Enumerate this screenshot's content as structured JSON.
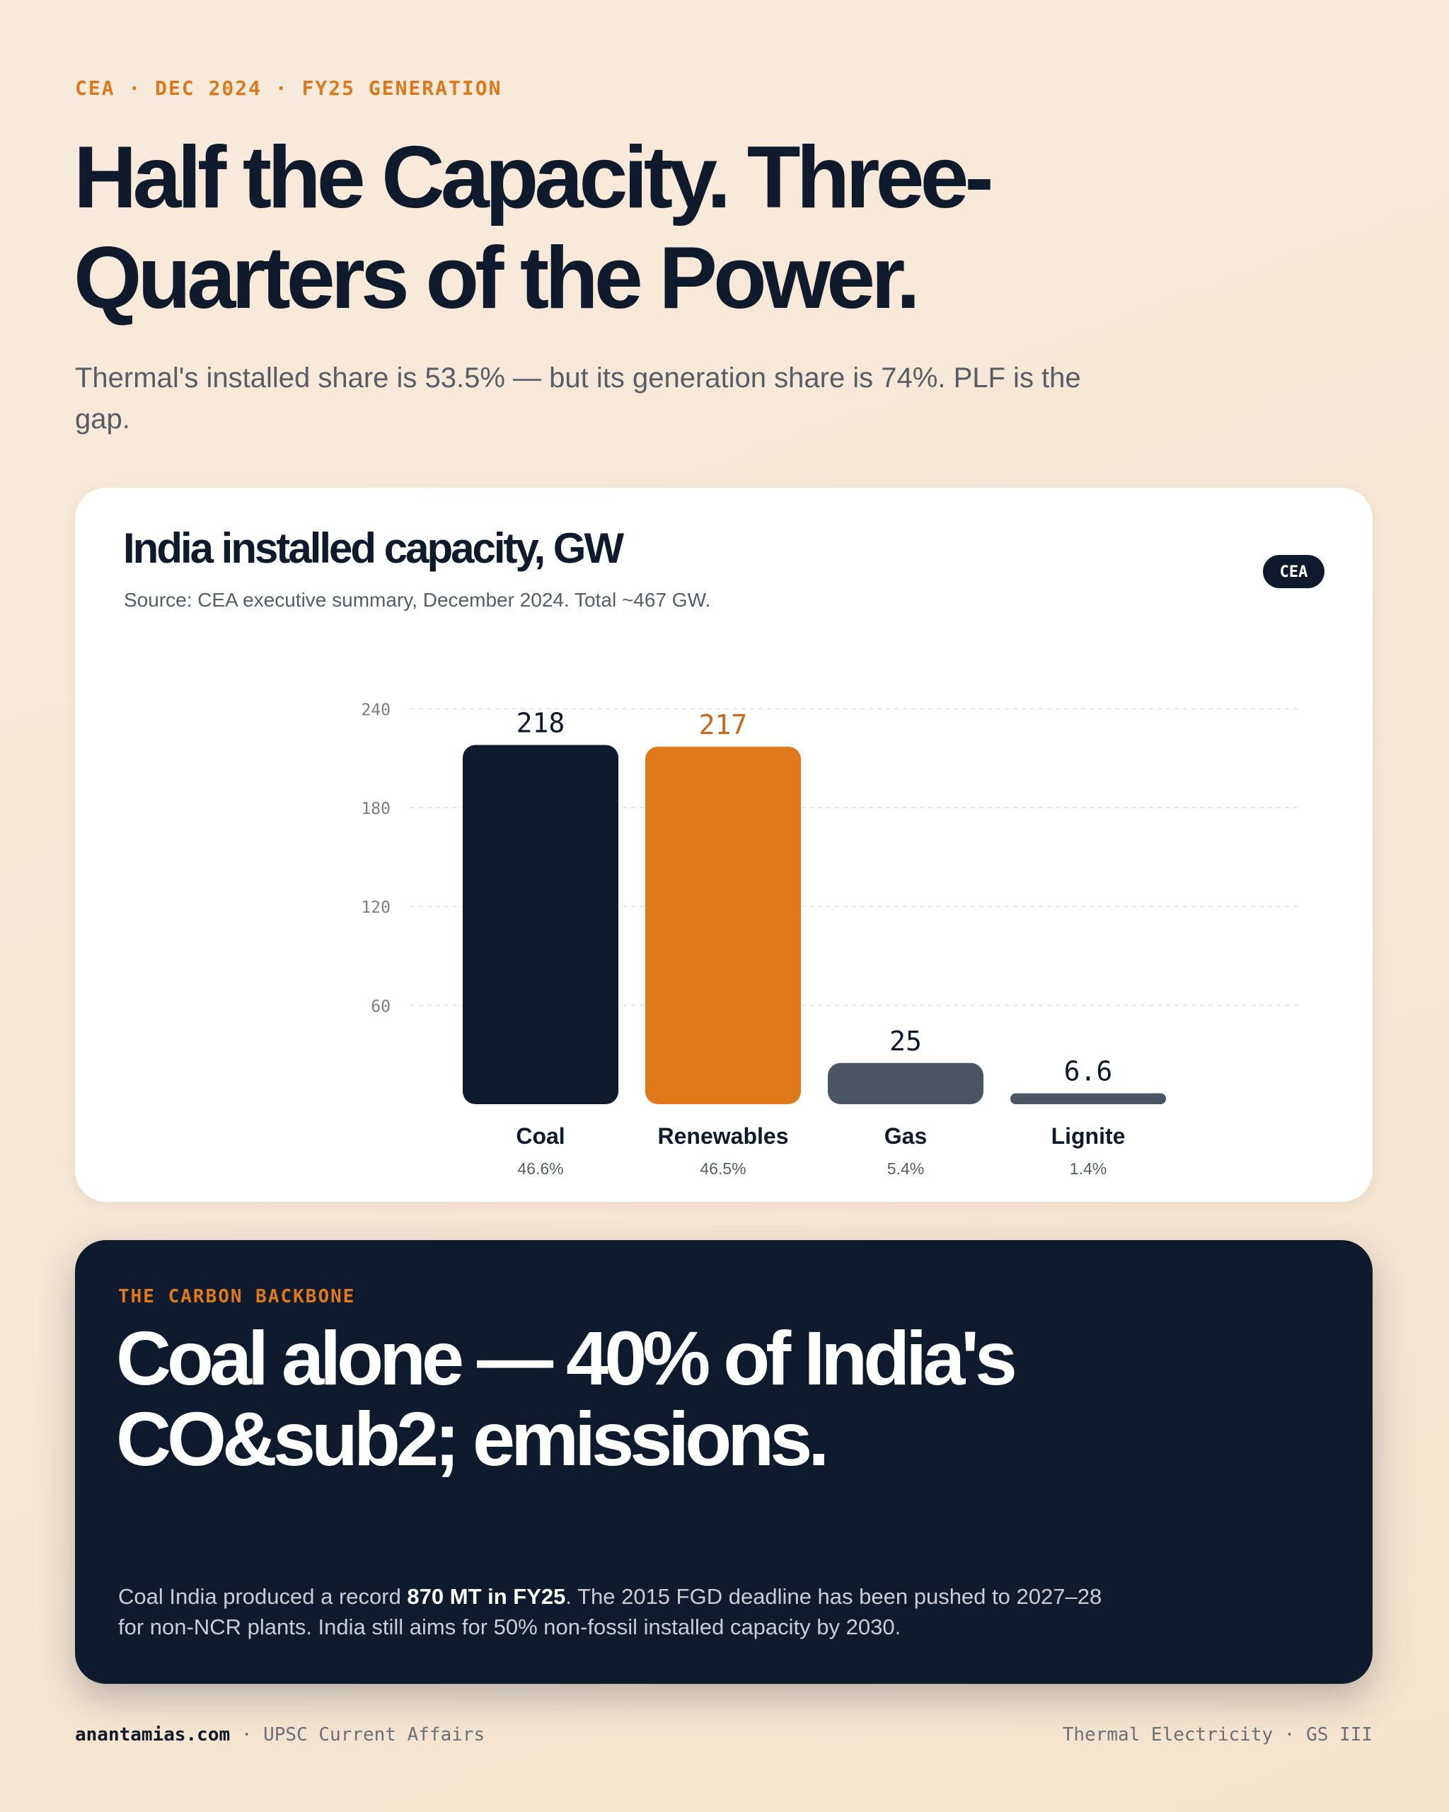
{
  "header": {
    "kicker": "CEA · DEC 2024 · FY25 GENERATION",
    "title": "Half the Capacity. Three-Quarters of the Power.",
    "subtitle": "Thermal's installed share is 53.5% — but its generation share is 74%. PLF is the gap."
  },
  "chart_card": {
    "badge": "CEA",
    "chart_data": {
      "type": "bar",
      "title": "India installed capacity, GW",
      "subtitle": "Source: CEA executive summary, December 2024. Total ~467 GW.",
      "categories": [
        "Coal",
        "Renewables",
        "Gas",
        "Lignite"
      ],
      "values": [
        218,
        217,
        25,
        6.6
      ],
      "shares": [
        "46.6%",
        "46.5%",
        "5.4%",
        "1.4%"
      ],
      "colors": [
        "#0e1b2e",
        "#e0781c",
        "#4a5563",
        "#4a5563"
      ],
      "label_colors": [
        "#0e1b2e",
        "#c9671a",
        "#0e1b2e",
        "#0e1b2e"
      ],
      "ylim": [
        0,
        250
      ],
      "yticks": [
        60,
        120,
        180,
        240
      ],
      "grid": true
    }
  },
  "callout": {
    "kicker": "THE CARBON BACKBONE",
    "title": "Coal alone — 40% of India's CO&sub2; emissions.",
    "body": [
      "Coal India produced a record ",
      "870 MT in FY25",
      ". The 2015 FGD deadline has been pushed to 2027–28 for non-NCR plants. India still aims for 50% non-fossil installed capacity by 2030."
    ]
  },
  "footer": {
    "site": "anantamias.com",
    "separator": "·",
    "tag": "UPSC Current Affairs",
    "right": "Thermal Electricity · GS III"
  }
}
